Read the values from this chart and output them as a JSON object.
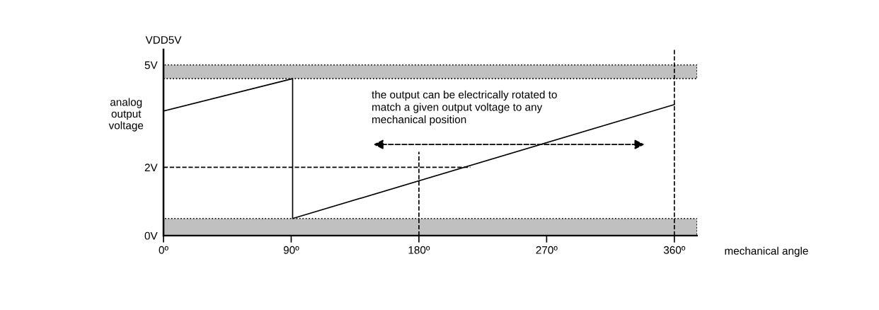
{
  "chart_data": {
    "type": "line",
    "xlabel": "mechanical angle",
    "ylabel": "analog\noutput\nvoltage",
    "annotations": [
      "VDD5V",
      "the output can be electrically rotated to\nmatch a given output voltage to any\nmechanical position"
    ],
    "series": [
      {
        "color": "#000000",
        "x": [
          0,
          91,
          91,
          360
        ],
        "values": [
          3.65,
          4.6,
          0.5,
          3.84
        ]
      }
    ],
    "xlim": [
      0,
      376
    ],
    "ylim": [
      0,
      5.45
    ],
    "xticks": [
      {
        "value": 0,
        "label": "0º"
      },
      {
        "value": 90,
        "label": "90º"
      },
      {
        "value": 180,
        "label": "180º"
      },
      {
        "value": 270,
        "label": "270º"
      },
      {
        "value": 360,
        "label": "360º"
      }
    ],
    "yticks": [
      {
        "value": 0,
        "label": "0V"
      },
      {
        "value": 2,
        "label": "2V"
      },
      {
        "value": 5,
        "label": "5V"
      }
    ],
    "ref_lines": [
      {
        "axis": "y",
        "value": 2,
        "line_style": "dashed",
        "color": "#000000"
      },
      {
        "axis": "x",
        "value": 180,
        "line_style": "dashed",
        "color": "#000000"
      },
      {
        "axis": "x",
        "value": 360,
        "line_style": "dashed",
        "color": "#000000"
      }
    ],
    "bands": [
      {
        "axis": "y",
        "from": 0,
        "to": 0.5,
        "color": "#c0c0c0"
      },
      {
        "axis": "y",
        "from": 4.6,
        "to": 5,
        "color": "#c0c0c0"
      }
    ],
    "grid": false,
    "legend": false,
    "marker": "none",
    "line_style": "solid"
  }
}
